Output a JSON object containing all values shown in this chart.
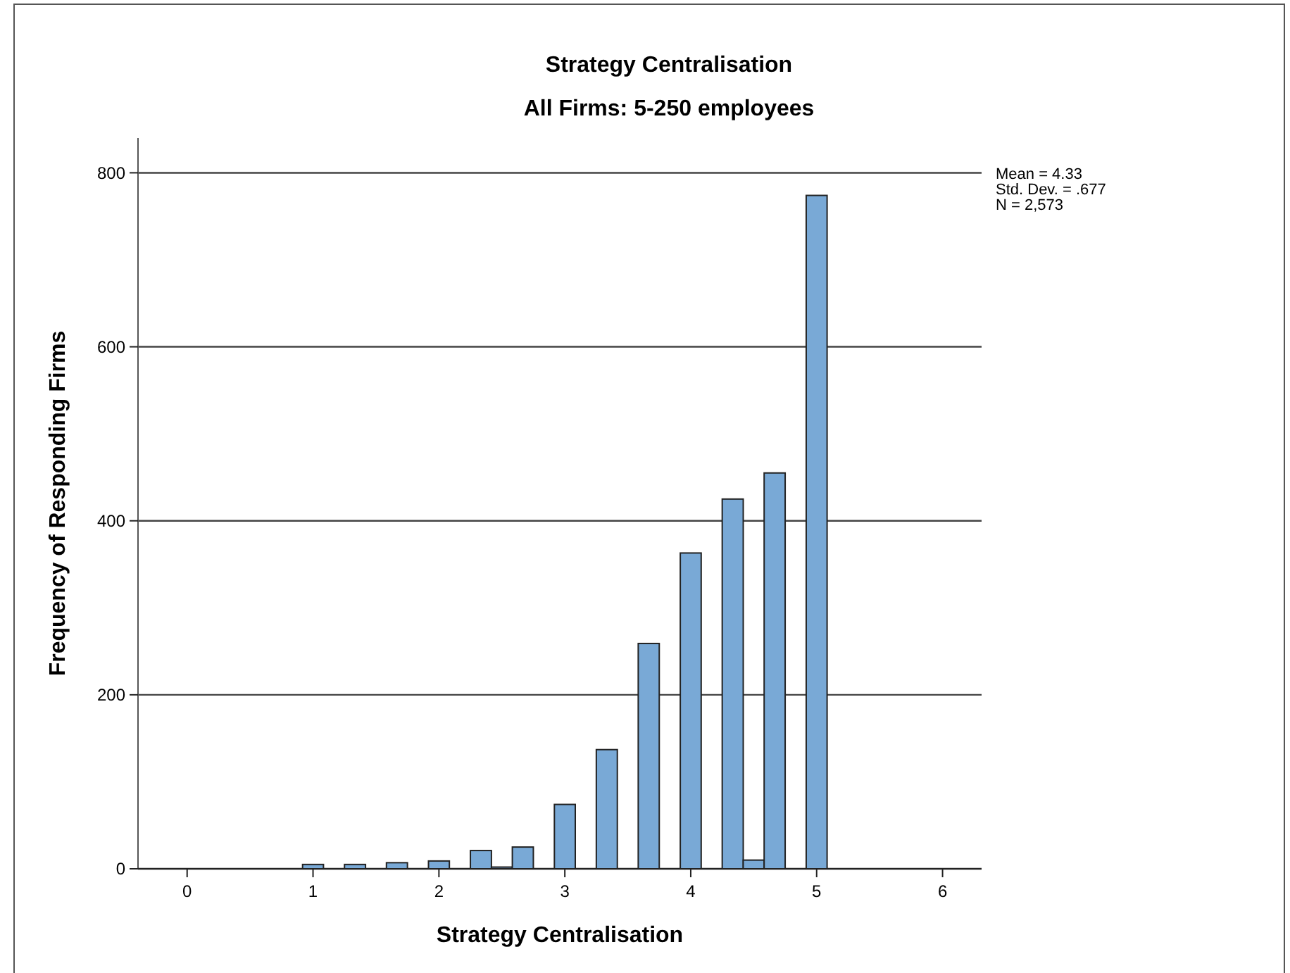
{
  "chart_data": {
    "type": "histogram",
    "title": "Strategy Centralisation",
    "subtitle": "All Firms: 5-250 employees",
    "xlabel": "Strategy Centralisation",
    "ylabel": "Frequency of Responding Firms",
    "bins": [
      0.917,
      1.083,
      1.25,
      1.417,
      1.583,
      1.75,
      1.917,
      2.083,
      2.25,
      2.417,
      2.583,
      2.75,
      2.917,
      3.083,
      3.25,
      3.417,
      3.583,
      3.75,
      3.917,
      4.083,
      4.25,
      4.417,
      4.583,
      4.75,
      4.917,
      5.083
    ],
    "values": [
      5,
      0,
      5,
      0,
      7,
      0,
      9,
      0,
      21,
      2,
      25,
      0,
      74,
      0,
      137,
      0,
      259,
      0,
      363,
      0,
      425,
      10,
      455,
      0,
      774
    ],
    "color": "#79a9d6",
    "xlim": [
      -0.39,
      6.31
    ],
    "xticks": [
      0,
      1,
      2,
      3,
      4,
      5,
      6
    ],
    "ylim": [
      0,
      840
    ],
    "yticks": [
      0,
      200,
      400,
      600,
      800
    ],
    "grid": "y",
    "annotations": [
      "Mean = 4.33",
      "Std. Dev. = .677",
      "N = 2,573"
    ]
  }
}
